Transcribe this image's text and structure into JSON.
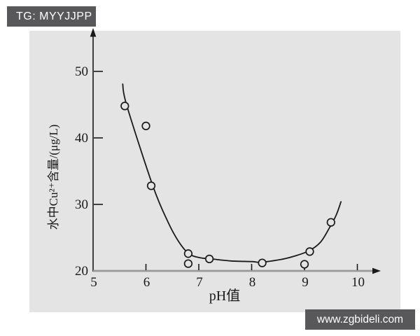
{
  "badges": {
    "top_left": "TG: MYYJJPP",
    "bottom_right": "www.zgbideli.com"
  },
  "colors": {
    "badge_bg": "#58585a",
    "badge_text": "#ffffff",
    "plot_bg": "#e4e4e4",
    "axis_black": "#1a1a1a",
    "x_axis_gray": "#999999",
    "curve": "#1a1a1a"
  },
  "chart_data": {
    "type": "scatter",
    "title": "",
    "xlabel": "pH值",
    "ylabel": "水中Cu²⁺含量/(μg/L)",
    "xlim": [
      5,
      10.4
    ],
    "ylim": [
      20,
      51.5
    ],
    "x_ticks": [
      5,
      6,
      7,
      8,
      9,
      10
    ],
    "y_ticks": [
      20,
      30,
      40,
      50
    ],
    "grid": false,
    "legend": null,
    "scatter_points": [
      [
        5.6,
        44.8
      ],
      [
        6.0,
        41.8
      ],
      [
        6.1,
        32.8
      ],
      [
        6.8,
        21.1
      ],
      [
        6.8,
        22.6
      ],
      [
        7.2,
        21.8
      ],
      [
        8.2,
        21.2
      ],
      [
        9.0,
        21.0
      ],
      [
        9.1,
        22.9
      ],
      [
        9.5,
        27.3
      ]
    ],
    "fitted_curve_points": [
      [
        5.56,
        48.1
      ],
      [
        5.64,
        44.8
      ],
      [
        6.13,
        32.8
      ],
      [
        6.42,
        27.3
      ],
      [
        6.62,
        24.4
      ],
      [
        6.81,
        22.6
      ],
      [
        7.01,
        22.0
      ],
      [
        7.24,
        21.8
      ],
      [
        7.61,
        21.5
      ],
      [
        8.01,
        21.4
      ],
      [
        8.17,
        21.3
      ],
      [
        8.54,
        21.7
      ],
      [
        8.8,
        22.2
      ],
      [
        9.08,
        23.0
      ],
      [
        9.3,
        24.3
      ],
      [
        9.46,
        26.3
      ],
      [
        9.6,
        28.4
      ],
      [
        9.69,
        30.4
      ]
    ]
  }
}
